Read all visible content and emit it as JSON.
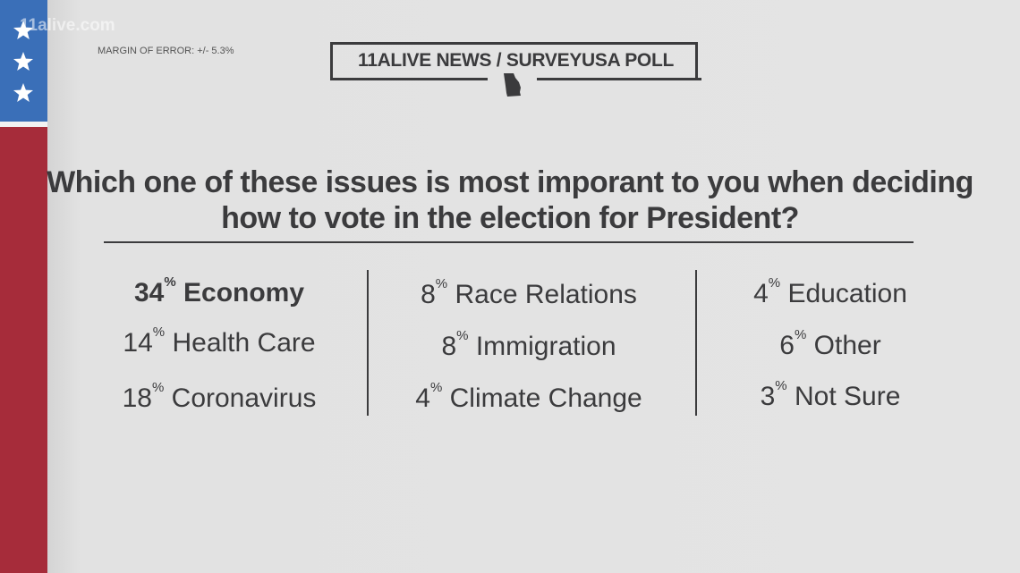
{
  "watermark": "11alive.com",
  "margin_of_error": "MARGIN OF ERROR: +/- 5.3%",
  "brand": "11ALIVE NEWS / SURVEYUSA POLL",
  "question": "Which one of these issues is most imporant to you when deciding how to vote in the election for President?",
  "colors": {
    "flag_blue": "#3a6fb8",
    "flag_red": "#a62c3a",
    "text": "#3b3b3d",
    "background": "#e4e4e4"
  },
  "columns": [
    [
      {
        "pct": "34",
        "label": "Economy",
        "highlight": true
      },
      {
        "pct": "14",
        "label": "Health Care"
      },
      {
        "pct": "18",
        "label": "Coronavirus"
      }
    ],
    [
      {
        "pct": "8",
        "label": "Race Relations"
      },
      {
        "pct": "8",
        "label": "Immigration"
      },
      {
        "pct": "4",
        "label": "Climate Change"
      }
    ],
    [
      {
        "pct": "4",
        "label": "Education"
      },
      {
        "pct": "6",
        "label": "Other"
      },
      {
        "pct": "3",
        "label": "Not Sure"
      }
    ]
  ],
  "pct_symbol": "%"
}
